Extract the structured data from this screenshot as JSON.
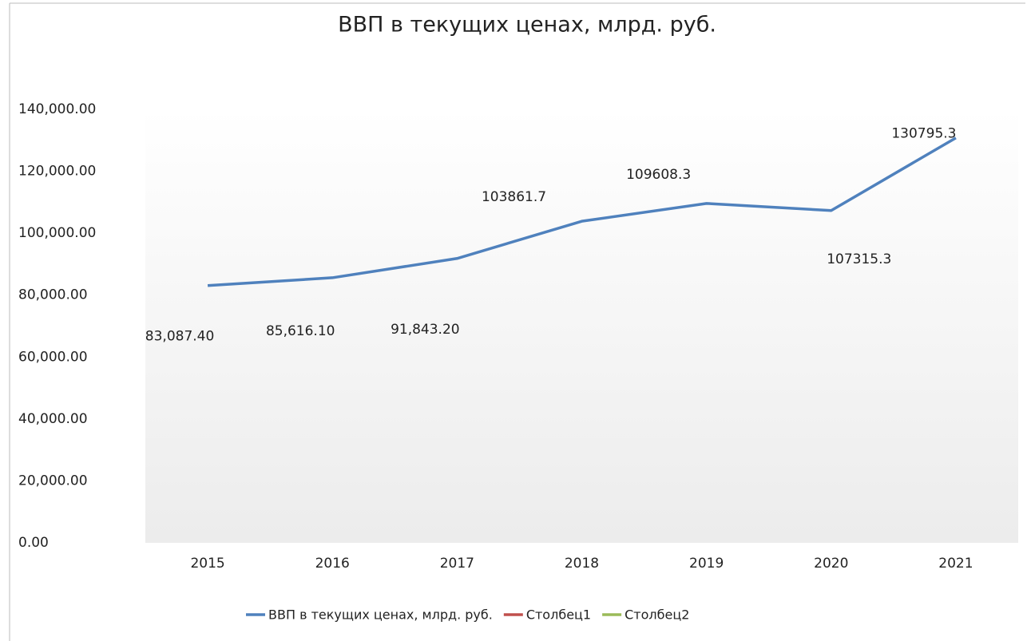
{
  "chart_data": {
    "type": "line",
    "title": "ВВП в текущих ценах, млрд. руб.",
    "categories": [
      "2015",
      "2016",
      "2017",
      "2018",
      "2019",
      "2020",
      "2021"
    ],
    "series": [
      {
        "name": "ВВП в текущих ценах, млрд. руб.",
        "color": "#4f81bd",
        "values": [
          83087.4,
          85616.1,
          91843.2,
          103861.7,
          109608.3,
          107315.3,
          130795.3
        ],
        "value_labels": [
          "83,087.40",
          "85,616.10",
          "91,843.20",
          "103861.7",
          "109608.3",
          "107315.3",
          "130795.3"
        ]
      },
      {
        "name": "Столбец1",
        "color": "#c0504d",
        "values": [
          null,
          null,
          null,
          null,
          null,
          null,
          null
        ]
      },
      {
        "name": "Столбец2",
        "color": "#9bbb59",
        "values": [
          null,
          null,
          null,
          null,
          null,
          null,
          null
        ]
      }
    ],
    "ylim": [
      0,
      140000
    ],
    "yticks": [
      {
        "value": 0,
        "label": "0.00"
      },
      {
        "value": 20000,
        "label": "20,000.00"
      },
      {
        "value": 40000,
        "label": "40,000.00"
      },
      {
        "value": 60000,
        "label": "60,000.00"
      },
      {
        "value": 80000,
        "label": "80,000.00"
      },
      {
        "value": 100000,
        "label": "100,000.00"
      },
      {
        "value": 120000,
        "label": "120,000.00"
      },
      {
        "value": 140000,
        "label": "140,000.00"
      }
    ],
    "grid": false,
    "legend": "bottom"
  }
}
